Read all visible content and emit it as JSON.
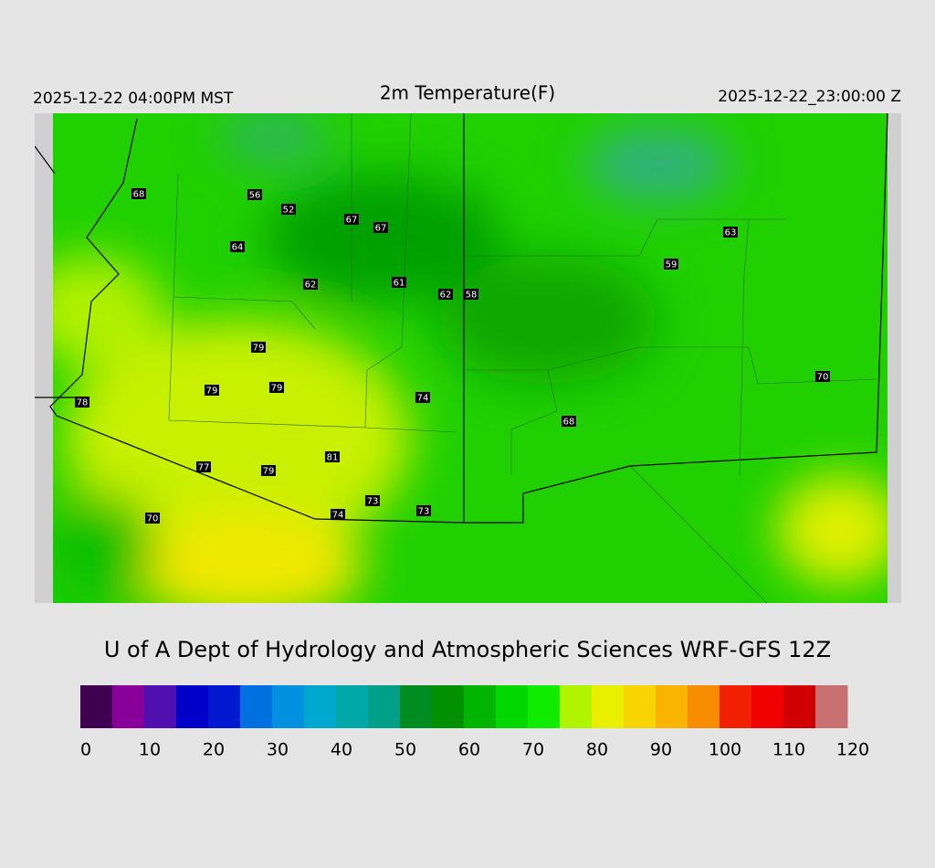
{
  "header": {
    "left": "2025-12-22 04:00PM MST",
    "title": "2m Temperature(F)",
    "right": "2025-12-22_23:00:00 Z"
  },
  "stations": [
    68,
    56,
    52,
    67,
    67,
    64,
    62,
    61,
    62,
    58,
    63,
    59,
    79,
    79,
    79,
    78,
    74,
    68,
    70,
    81,
    77,
    79,
    73,
    73,
    74,
    70
  ],
  "credit": "U of A Dept of Hydrology and Atmospheric Sciences WRF-GFS 12Z",
  "colorbar": {
    "range": [
      0,
      120
    ],
    "ticks": [
      0,
      10,
      20,
      30,
      40,
      50,
      60,
      70,
      80,
      90,
      100,
      110,
      120
    ],
    "colors": [
      "#400050",
      "#880098",
      "#5010b0",
      "#0000c8",
      "#0018d0",
      "#0070e0",
      "#0090e0",
      "#00a8d0",
      "#00a8a8",
      "#00a088",
      "#008c20",
      "#009000",
      "#00b400",
      "#00d800",
      "#10ec00",
      "#b0f400",
      "#e8f000",
      "#f8d400",
      "#f8b400",
      "#f88c00",
      "#f02000",
      "#f00000",
      "#d00000",
      "#c87070"
    ]
  }
}
